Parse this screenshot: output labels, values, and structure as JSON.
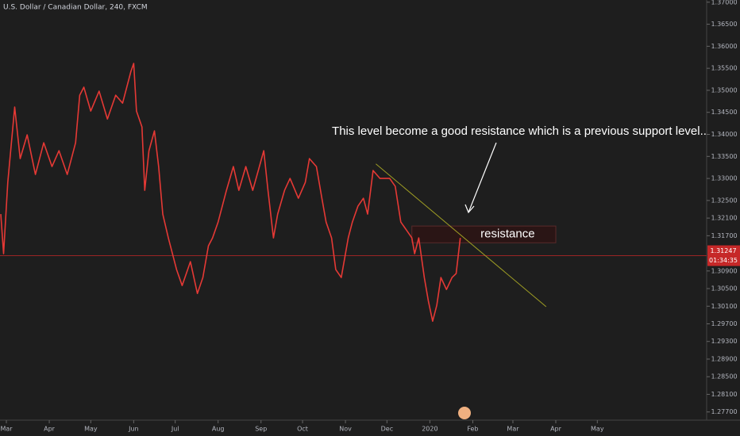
{
  "chart_data": {
    "type": "line",
    "title": "U.S. Dollar / Canadian Dollar, 240, FXCM",
    "color": "#e53935",
    "x": [
      -4,
      -2,
      1,
      6,
      10,
      15,
      21,
      27,
      33,
      38,
      44,
      50,
      53,
      56,
      61,
      67,
      73,
      79,
      84,
      90,
      92,
      94,
      98,
      100,
      103,
      107,
      110,
      113,
      117,
      120,
      123,
      127,
      133,
      138,
      142,
      146,
      149,
      153,
      159,
      164,
      168,
      173,
      178,
      182,
      186,
      189,
      193,
      196,
      201,
      205,
      211,
      216,
      219,
      224,
      228,
      231,
      235,
      238,
      242,
      247,
      250,
      254,
      258,
      261,
      265,
      270,
      277,
      281,
      285,
      289,
      293,
      295,
      298,
      302,
      305,
      308,
      311,
      314,
      318,
      322,
      325,
      328
    ],
    "values": [
      1.3219,
      1.3129,
      1.3291,
      1.3462,
      1.3345,
      1.3399,
      1.3309,
      1.3381,
      1.3327,
      1.3363,
      1.3309,
      1.3381,
      1.3489,
      1.3507,
      1.3453,
      1.3498,
      1.3435,
      1.3489,
      1.3471,
      1.3543,
      1.3561,
      1.3453,
      1.3417,
      1.3273,
      1.3363,
      1.3408,
      1.3327,
      1.3219,
      1.3165,
      1.3129,
      1.3093,
      1.3057,
      1.3111,
      1.3039,
      1.3075,
      1.3147,
      1.3165,
      1.3201,
      1.3273,
      1.3327,
      1.3273,
      1.3327,
      1.3273,
      1.3318,
      1.3363,
      1.3273,
      1.3165,
      1.3219,
      1.3273,
      1.33,
      1.3255,
      1.3291,
      1.3345,
      1.3327,
      1.3255,
      1.3201,
      1.3165,
      1.3093,
      1.3075,
      1.3165,
      1.3201,
      1.3237,
      1.3255,
      1.3219,
      1.3318,
      1.33,
      1.33,
      1.3282,
      1.3201,
      1.3183,
      1.3165,
      1.3129,
      1.3165,
      1.3075,
      1.3021,
      1.2976,
      1.3012,
      1.3075,
      1.3048,
      1.3075,
      1.3084,
      1.3165
    ],
    "xlim": [
      -4.6,
      506
    ],
    "xticks": [
      {
        "value": 0,
        "label": "Mar"
      },
      {
        "value": 31,
        "label": "Apr"
      },
      {
        "value": 61,
        "label": "May"
      },
      {
        "value": 92,
        "label": "Jun"
      },
      {
        "value": 122,
        "label": "Jul"
      },
      {
        "value": 153,
        "label": "Aug"
      },
      {
        "value": 184,
        "label": "Sep"
      },
      {
        "value": 214,
        "label": "Oct"
      },
      {
        "value": 245,
        "label": "Nov"
      },
      {
        "value": 275,
        "label": "Dec"
      },
      {
        "value": 306,
        "label": "2020"
      },
      {
        "value": 337,
        "label": "Feb"
      },
      {
        "value": 366,
        "label": "Mar"
      },
      {
        "value": 397,
        "label": "Apr"
      },
      {
        "value": 427,
        "label": "May"
      }
    ],
    "ylim": [
      1.2755,
      1.3705
    ],
    "yticks": [
      {
        "value": 1.37,
        "label": "1.37000"
      },
      {
        "value": 1.365,
        "label": "1.36500"
      },
      {
        "value": 1.36,
        "label": "1.36000"
      },
      {
        "value": 1.355,
        "label": "1.35500"
      },
      {
        "value": 1.35,
        "label": "1.35000"
      },
      {
        "value": 1.345,
        "label": "1.34500"
      },
      {
        "value": 1.34,
        "label": "1.34000"
      },
      {
        "value": 1.335,
        "label": "1.33500"
      },
      {
        "value": 1.33,
        "label": "1.33000"
      },
      {
        "value": 1.325,
        "label": "1.32500"
      },
      {
        "value": 1.321,
        "label": "1.32100"
      },
      {
        "value": 1.317,
        "label": "1.31700"
      },
      {
        "value": 1.309,
        "label": "1.30900"
      },
      {
        "value": 1.305,
        "label": "1.30500"
      },
      {
        "value": 1.301,
        "label": "1.30100"
      },
      {
        "value": 1.297,
        "label": "1.29700"
      },
      {
        "value": 1.293,
        "label": "1.29300"
      },
      {
        "value": 1.289,
        "label": "1.28900"
      },
      {
        "value": 1.285,
        "label": "1.28500"
      },
      {
        "value": 1.281,
        "label": "1.28100"
      },
      {
        "value": 1.277,
        "label": "1.27700"
      }
    ],
    "last_price": 1.31247,
    "countdown": "01:34:35",
    "trendline": {
      "x": [
        267,
        390
      ],
      "y": [
        1.3333,
        1.3009
      ],
      "color": "#9e9d24"
    },
    "resistance_zone": {
      "label": "resistance",
      "xlim": [
        293,
        397
      ],
      "ylim": [
        1.3154,
        1.3192
      ]
    },
    "annotation": "This level become a good resistance which is a previous support level.."
  }
}
